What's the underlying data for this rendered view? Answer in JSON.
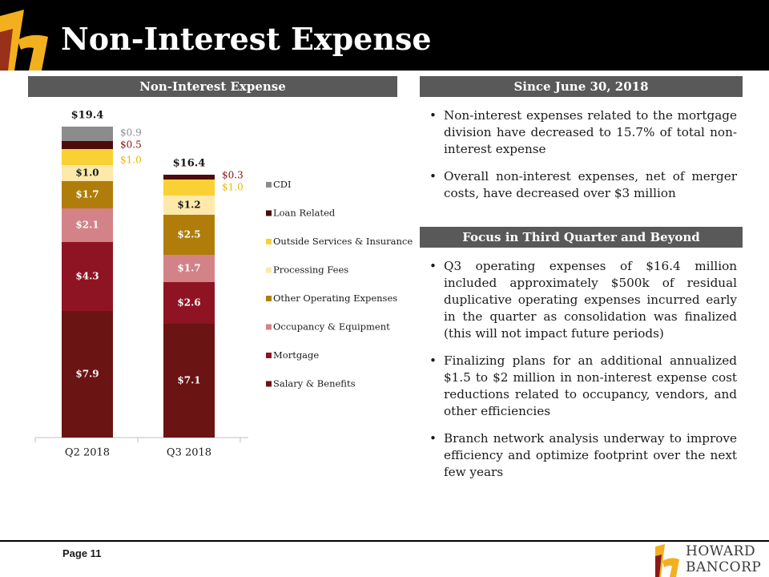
{
  "page": {
    "title": "Non-Interest Expense",
    "page_number": "Page 11",
    "brand_line_1": "HOWARD",
    "brand_line_2": "BANCORP"
  },
  "colors": {
    "title_bar": "#000000",
    "header_bar": "#595959",
    "brand_gold": "#f2b01e",
    "brand_red": "#8a1a1a"
  },
  "sections": {
    "chart_header": "Non-Interest Expense",
    "since_header": "Since June 30, 2018",
    "since_bullets": [
      "Non-interest expenses related to the mortgage division have decreased to 15.7% of total non-interest expense",
      "Overall non-interest expenses, net of merger costs, have decreased over $3 million"
    ],
    "focus_header": "Focus in Third Quarter and Beyond",
    "focus_bullets": [
      "Q3 operating expenses of $16.4 million included approximately $500k of residual duplicative operating expenses incurred early in the quarter as consolidation was finalized (this will not impact future periods)",
      "Finalizing plans for an additional annualized $1.5 to $2 million in non-interest expense cost reductions related to occupancy, vendors, and other efficiencies",
      "Branch network analysis underway to improve efficiency and optimize footprint over the next few years"
    ]
  },
  "chart_data": {
    "type": "bar",
    "stacked": true,
    "title": "",
    "xlabel": "",
    "ylabel": "",
    "ylim": [
      0,
      20
    ],
    "categories": [
      "Q2 2018",
      "Q3 2018"
    ],
    "totals": [
      19.4,
      16.4
    ],
    "total_labels": [
      "$19.4",
      "$16.4"
    ],
    "legend_position": "right",
    "series": [
      {
        "name": "Salary & Benefits",
        "color": "#6b1414",
        "values": [
          7.9,
          7.1
        ],
        "labels": [
          "$7.9",
          "$7.1"
        ],
        "label_color": "#ffffff"
      },
      {
        "name": "Mortgage",
        "color": "#8f1423",
        "values": [
          4.3,
          2.6
        ],
        "labels": [
          "$4.3",
          "$2.6"
        ],
        "label_color": "#ffffff"
      },
      {
        "name": "Occupancy & Equipment",
        "color": "#d38288",
        "values": [
          2.1,
          1.7
        ],
        "labels": [
          "$2.1",
          "$1.7"
        ],
        "label_color": "#ffffff"
      },
      {
        "name": "Other Operating Expenses",
        "color": "#b07d0a",
        "values": [
          1.7,
          2.5
        ],
        "labels": [
          "$1.7",
          "$2.5"
        ],
        "label_color": "#ffffff"
      },
      {
        "name": "Processing Fees",
        "color": "#fde9a9",
        "values": [
          1.0,
          1.2
        ],
        "labels": [
          "$1.0",
          "$1.2"
        ],
        "label_color": "#1a1a1a"
      },
      {
        "name": "Outside Services & Insurance",
        "color": "#f9d134",
        "values": [
          1.0,
          1.0
        ],
        "labels": [
          "$1.0",
          "$1.0"
        ],
        "label_color": "#e8b800",
        "label_outside": true
      },
      {
        "name": "Loan Related",
        "color": "#4d0b0b",
        "values": [
          0.5,
          0.3
        ],
        "labels": [
          "$0.5",
          "$0.3"
        ],
        "label_color": "#8a1010",
        "label_outside": true
      },
      {
        "name": "CDI",
        "color": "#8c8c8c",
        "values": [
          0.9,
          0
        ],
        "labels": [
          "$0.9",
          ""
        ],
        "label_color": "#8c8c8c",
        "label_outside": true
      }
    ]
  }
}
